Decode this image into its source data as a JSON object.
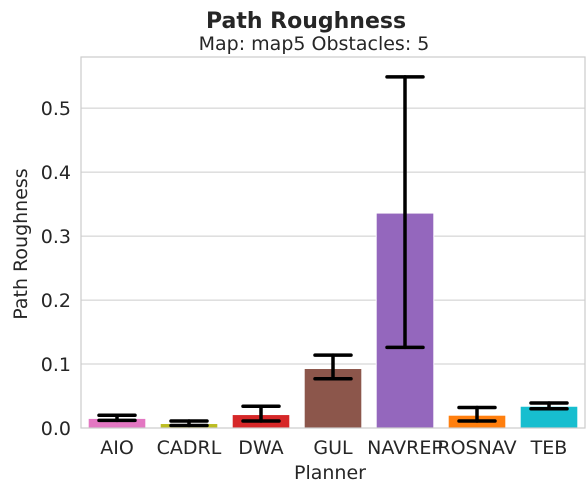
{
  "chart_data": {
    "type": "bar",
    "title": "Path Roughness",
    "subtitle": "Map: map5 Obstacles: 5",
    "xlabel": "Planner",
    "ylabel": "Path Roughness",
    "ylim": [
      0,
      0.58
    ],
    "yticks": [
      "0.0",
      "0.1",
      "0.2",
      "0.3",
      "0.4",
      "0.5"
    ],
    "grid": true,
    "categories": [
      "AIO",
      "CADRL",
      "DWA",
      "GUL",
      "NAVREP",
      "ROSNAV",
      "TEB"
    ],
    "values": [
      0.015,
      0.007,
      0.021,
      0.093,
      0.336,
      0.02,
      0.034
    ],
    "error_low": [
      0.012,
      0.004,
      0.011,
      0.077,
      0.126,
      0.011,
      0.03
    ],
    "error_high": [
      0.02,
      0.011,
      0.034,
      0.114,
      0.549,
      0.032,
      0.039
    ],
    "colors": [
      "#e377c2",
      "#bcbd22",
      "#d62728",
      "#8c564b",
      "#9467bd",
      "#ff7f0e",
      "#17becf"
    ]
  }
}
